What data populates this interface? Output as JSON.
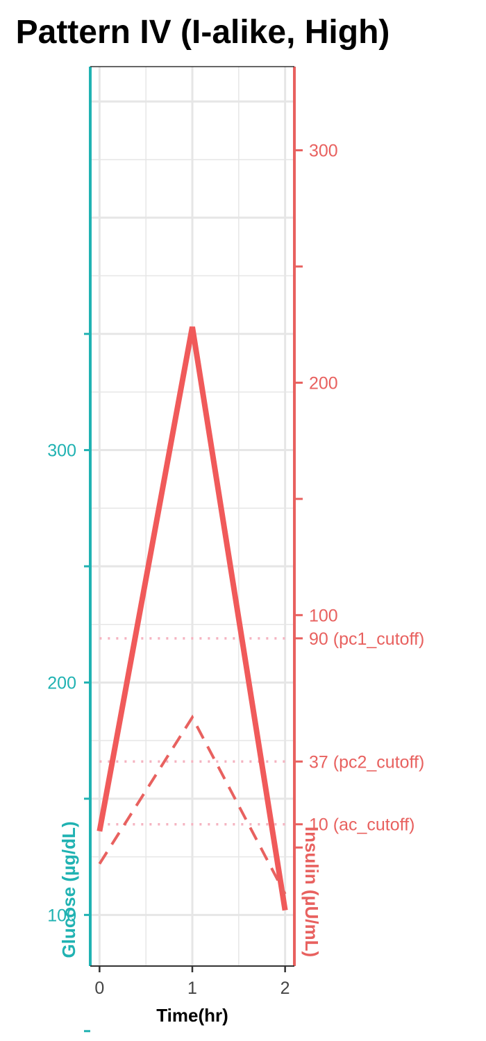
{
  "chart_data": {
    "type": "line",
    "title": "Pattern IV (I-alike, High)",
    "xlabel": "Time(hr)",
    "ylabel_left": "Glucose (µg/dL)",
    "ylabel_right": "Insulin (µU/mL)",
    "x": [
      0,
      1,
      2
    ],
    "x_ticks": [
      "0",
      "1",
      "2"
    ],
    "xlim": [
      -0.1,
      2.1
    ],
    "y_left_lim": [
      78,
      465
    ],
    "y_left_ticks": [
      {
        "value": 100,
        "label": "100"
      },
      {
        "value": 200,
        "label": "200"
      },
      {
        "value": 300,
        "label": "300"
      }
    ],
    "y_left_minor_ticks": [
      50,
      150,
      250,
      350
    ],
    "y_right_lim": [
      -51,
      336
    ],
    "y_right_ticks": [
      {
        "value": 100,
        "label": "100"
      },
      {
        "value": 200,
        "label": "200"
      },
      {
        "value": 300,
        "label": "300"
      }
    ],
    "y_right_minor_ticks": [
      0,
      150,
      250
    ],
    "cutoffs": [
      {
        "value": 90,
        "label": "90 (pc1_cutoff)"
      },
      {
        "value": 37,
        "label": "37 (pc2_cutoff)"
      },
      {
        "value": 10,
        "label": "10 (ac_cutoff)"
      }
    ],
    "series": [
      {
        "axis": "right",
        "style": "solid",
        "color": "#f05a5a",
        "values": [
          7,
          224,
          -27
        ]
      },
      {
        "axis": "right",
        "style": "dashed",
        "color": "#e8615f",
        "values": [
          -7,
          56,
          -20
        ]
      }
    ],
    "grid": true,
    "colors": {
      "glucose": "#20b2b2",
      "insulin": "#e8615f",
      "cutoff": "#f5b3c0"
    }
  }
}
